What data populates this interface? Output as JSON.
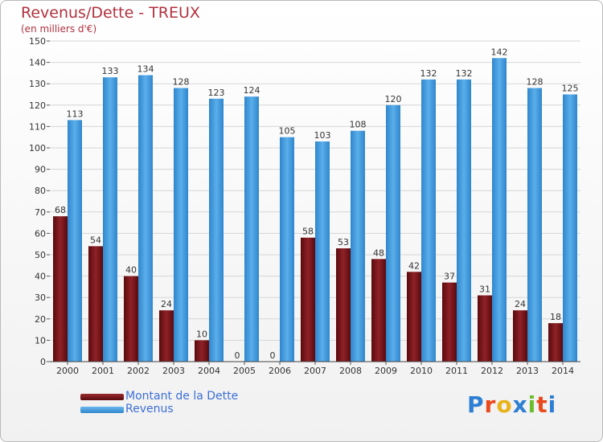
{
  "title": "Revenus/Dette - TREUX",
  "subtitle": "(en milliers d'€)",
  "legend": {
    "dette_label": "Montant de la Dette",
    "revenus_label": "Revenus"
  },
  "logo": {
    "text": "Proxiti",
    "letters": [
      "P",
      "r",
      "o",
      "x",
      "i",
      "t",
      "i"
    ],
    "colors": [
      "#2e7fd4",
      "#e94a1d",
      "#e9b31b",
      "#2e7fd4",
      "#6cbd2d",
      "#e94a1d",
      "#2e7fd4"
    ]
  },
  "colors": {
    "dette": "#7b1416",
    "revenus": "#3b99dc",
    "title": "#b0323e",
    "axis_text": "#333333",
    "grid": "#d6d6d6"
  },
  "chart_data": {
    "type": "bar",
    "categories": [
      "2000",
      "2001",
      "2002",
      "2003",
      "2004",
      "2005",
      "2006",
      "2007",
      "2008",
      "2009",
      "2010",
      "2011",
      "2012",
      "2013",
      "2014"
    ],
    "series": [
      {
        "name": "Montant de la Dette",
        "values": [
          68,
          54,
          40,
          24,
          10,
          0,
          0,
          58,
          53,
          48,
          42,
          37,
          31,
          24,
          18
        ]
      },
      {
        "name": "Revenus",
        "values": [
          113,
          133,
          134,
          128,
          123,
          124,
          105,
          103,
          108,
          120,
          132,
          132,
          142,
          128,
          125
        ]
      }
    ],
    "ylim": [
      0,
      150
    ],
    "yticks": [
      0,
      10,
      20,
      30,
      40,
      50,
      60,
      70,
      80,
      90,
      100,
      110,
      120,
      130,
      140,
      150
    ],
    "grid": true,
    "legend_position": "bottom-left"
  }
}
